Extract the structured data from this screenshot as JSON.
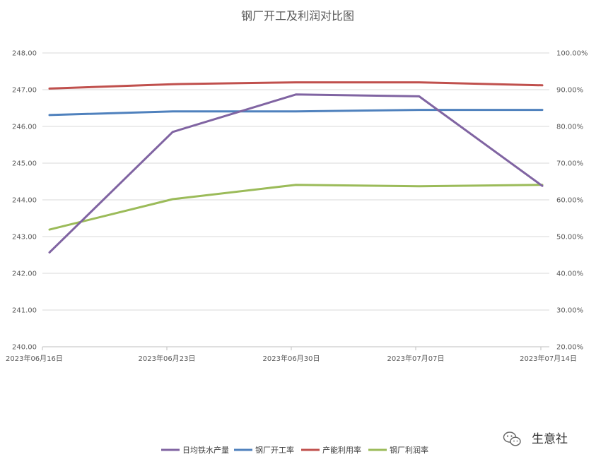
{
  "chart_data": {
    "type": "line",
    "title": "钢厂开工及利润对比图",
    "categories": [
      "2023年06月16日",
      "2023年06月23日",
      "2023年06月30日",
      "2023年07月07日",
      "2023年07月14日"
    ],
    "y_left": {
      "ylim": [
        240,
        248
      ],
      "ticks": [
        "240.00",
        "241.00",
        "242.00",
        "243.00",
        "244.00",
        "245.00",
        "246.00",
        "247.00",
        "248.00"
      ]
    },
    "y_right": {
      "ylim": [
        20,
        100
      ],
      "ticks": [
        "20.00%",
        "30.00%",
        "40.00%",
        "50.00%",
        "60.00%",
        "70.00%",
        "80.00%",
        "90.00%",
        "100.00%"
      ]
    },
    "series": [
      {
        "name": "日均铁水产量",
        "axis": "left",
        "color": "#8064A2",
        "values": [
          242.57,
          245.85,
          246.87,
          246.82,
          244.38
        ]
      },
      {
        "name": "钢厂开工率",
        "axis": "right",
        "color": "#4F81BD",
        "values": [
          83.1,
          84.1,
          84.1,
          84.5,
          84.5
        ]
      },
      {
        "name": "产能利用率",
        "axis": "right",
        "color": "#C0504D",
        "values": [
          90.3,
          91.5,
          92.0,
          92.0,
          91.2
        ]
      },
      {
        "name": "钢厂利润率",
        "axis": "right",
        "color": "#9BBB59",
        "values": [
          51.9,
          60.2,
          64.1,
          63.7,
          64.1
        ]
      }
    ],
    "legend": "bottom",
    "grid": true
  },
  "watermark": {
    "icon": "wechat-icon",
    "text": "生意社"
  }
}
